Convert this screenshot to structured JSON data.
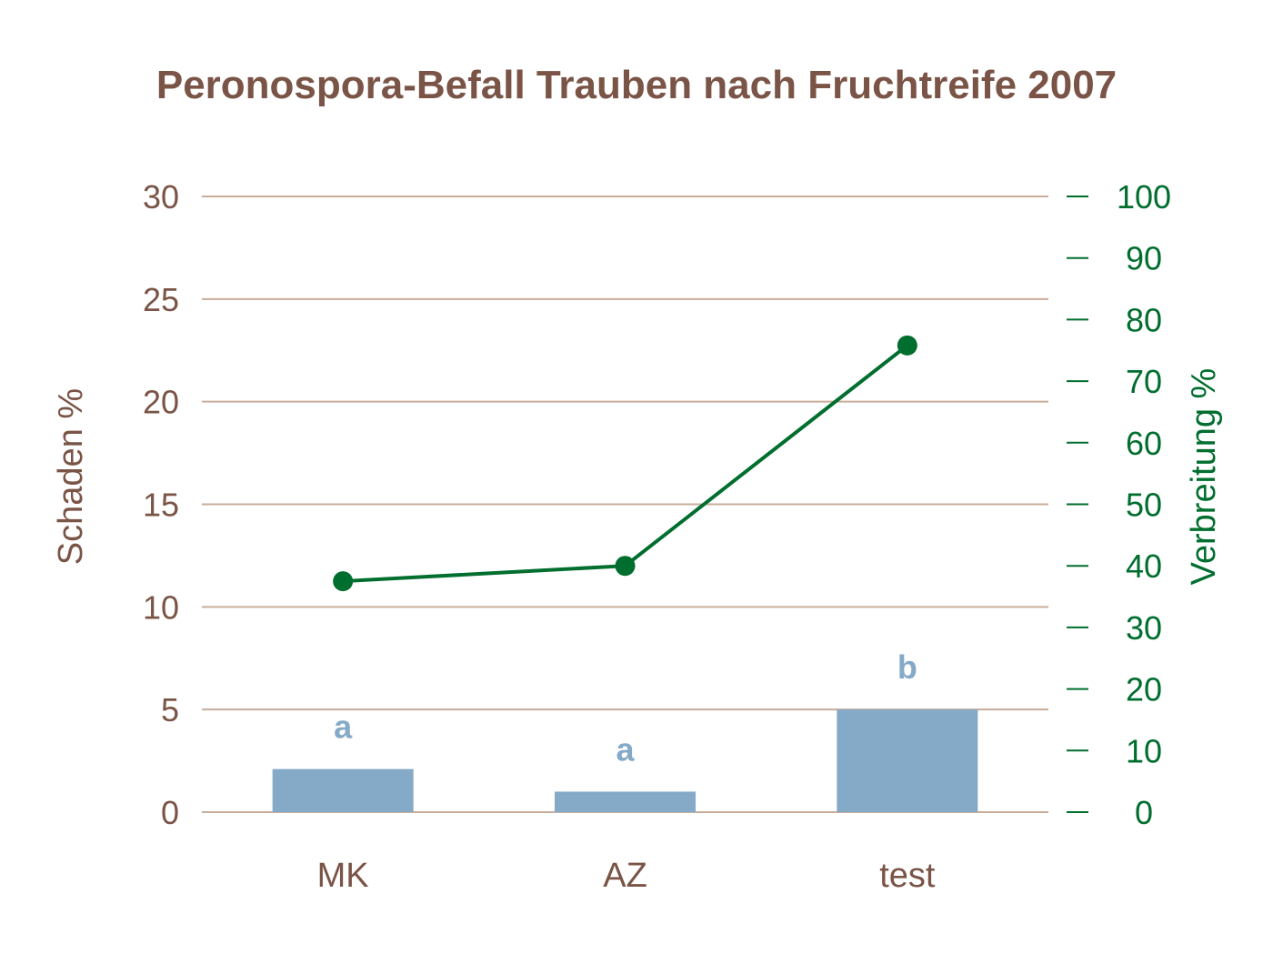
{
  "chart_data": {
    "type": "bar",
    "title": "Peronospora-Befall Trauben nach Fruchtreife 2007",
    "categories": [
      "MK",
      "AZ",
      "test"
    ],
    "ylabel": "Schaden %",
    "ylabel_right": "Verbreitung %",
    "ylim": [
      0,
      30
    ],
    "ylim_right": [
      0,
      100
    ],
    "yticks": [
      "0",
      "5",
      "10",
      "15",
      "20",
      "25",
      "30"
    ],
    "yticks_right": [
      "0",
      "10",
      "20",
      "30",
      "40",
      "50",
      "60",
      "70",
      "80",
      "90",
      "100"
    ],
    "grid": true,
    "series": [
      {
        "type": "bar",
        "axis": "left",
        "values": [
          2.1,
          1.0,
          5.0
        ],
        "labels": [
          "a",
          "a",
          "b"
        ],
        "color": "#85aac8"
      },
      {
        "type": "line",
        "axis": "right",
        "values": [
          37.5,
          40.0,
          75.8
        ],
        "color": "#006e2e"
      }
    ]
  },
  "colors": {
    "text_brown": "#7a5446",
    "grid": "#c9ad9a",
    "bar": "#85aac8",
    "line": "#006e2e"
  }
}
